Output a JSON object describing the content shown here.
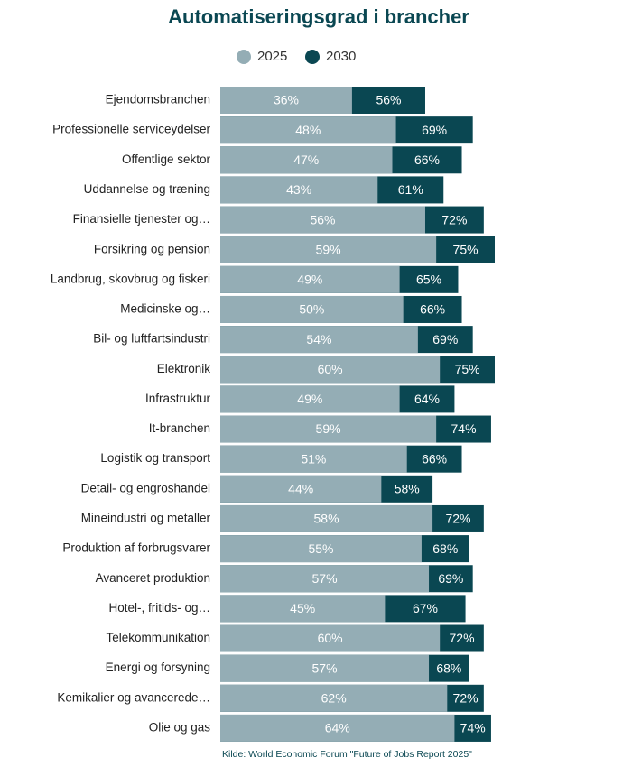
{
  "chart_data": {
    "type": "bar",
    "orientation": "horizontal",
    "overlap": true,
    "title": "Automatiseringsgrad i brancher",
    "source": "Kilde: World Economic Forum \"Future of Jobs Report 2025\"",
    "categories": [
      "Ejendomsbranchen",
      "Professionelle serviceydelser",
      "Offentlige sektor",
      "Uddannelse og træning",
      "Finansielle tjenester og…",
      "Forsikring og pension",
      "Landbrug, skovbrug og fiskeri",
      "Medicinske og…",
      "Bil- og luftfartsindustri",
      "Elektronik",
      "Infrastruktur",
      "It-branchen",
      "Logistik og transport",
      "Detail- og engroshandel",
      "Mineindustri og metaller",
      "Produktion af forbrugsvarer",
      "Avanceret produktion",
      "Hotel-, fritids- og…",
      "Telekommunikation",
      "Energi og forsyning",
      "Kemikalier og avancerede…",
      "Olie og gas"
    ],
    "series": [
      {
        "name": "2025",
        "color": "#94adb5",
        "values": [
          36,
          48,
          47,
          43,
          56,
          59,
          49,
          50,
          54,
          60,
          49,
          59,
          51,
          44,
          58,
          55,
          57,
          45,
          60,
          57,
          62,
          64
        ],
        "value_labels": [
          "36%",
          "48%",
          "47%",
          "43%",
          "56%",
          "59%",
          "49%",
          "50%",
          "54%",
          "60%",
          "49%",
          "59%",
          "51%",
          "44%",
          "58%",
          "55%",
          "57%",
          "45%",
          "60%",
          "57%",
          "62%",
          "64%"
        ]
      },
      {
        "name": "2030",
        "color": "#0a4752",
        "values": [
          56,
          69,
          66,
          61,
          72,
          75,
          65,
          66,
          69,
          75,
          64,
          74,
          66,
          58,
          72,
          68,
          69,
          67,
          72,
          68,
          72,
          74
        ],
        "value_labels": [
          "56%",
          "69%",
          "66%",
          "61%",
          "72%",
          "75%",
          "65%",
          "66%",
          "69%",
          "75%",
          "64%",
          "74%",
          "66%",
          "58%",
          "72%",
          "68%",
          "69%",
          "67%",
          "72%",
          "68%",
          "72%",
          "74%"
        ]
      }
    ]
  }
}
